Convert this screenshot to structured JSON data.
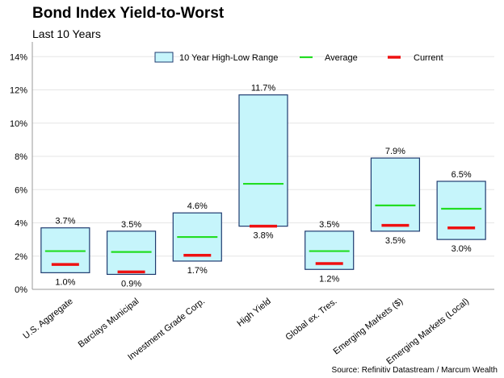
{
  "title": "Bond Index Yield-to-Worst",
  "subtitle": "Last 10 Years",
  "source": "Source: Refinitiv Datastream / Marcum Wealth",
  "chart_data": {
    "type": "range-bar",
    "title": "Bond Index Yield-to-Worst",
    "subtitle": "Last 10 Years",
    "categories": [
      "U.S. Aggregate",
      "Barclays Municipal",
      "Investment Grade Corp.",
      "High Yield",
      "Global ex. Tres.",
      "Emerging Markets ($)",
      "Emerging Markets (Local)"
    ],
    "series": [
      {
        "name": "10 Year High-Low Range",
        "high": [
          3.7,
          3.5,
          4.6,
          11.7,
          3.5,
          7.9,
          6.5
        ],
        "low": [
          1.0,
          0.9,
          1.7,
          3.8,
          1.2,
          3.5,
          3.0
        ]
      },
      {
        "name": "Average",
        "values": [
          2.3,
          2.25,
          3.15,
          6.35,
          2.3,
          5.05,
          4.85
        ]
      },
      {
        "name": "Current",
        "values": [
          1.5,
          1.05,
          2.05,
          3.8,
          1.55,
          3.85,
          3.7
        ]
      }
    ],
    "high_labels": [
      "3.7%",
      "3.5%",
      "4.6%",
      "11.7%",
      "3.5%",
      "7.9%",
      "6.5%"
    ],
    "low_labels": [
      "1.0%",
      "0.9%",
      "1.7%",
      "3.8%",
      "1.2%",
      "3.5%",
      "3.0%"
    ],
    "yticks": [
      "0%",
      "2%",
      "4%",
      "6%",
      "8%",
      "10%",
      "12%",
      "14%"
    ],
    "ylim": [
      0,
      14.5
    ],
    "legend_position": "top",
    "colors": {
      "range_fill": "#c6f5fb",
      "range_stroke": "#1f3b70",
      "average": "#22dd22",
      "current": "#ee1111"
    },
    "grid": true
  }
}
